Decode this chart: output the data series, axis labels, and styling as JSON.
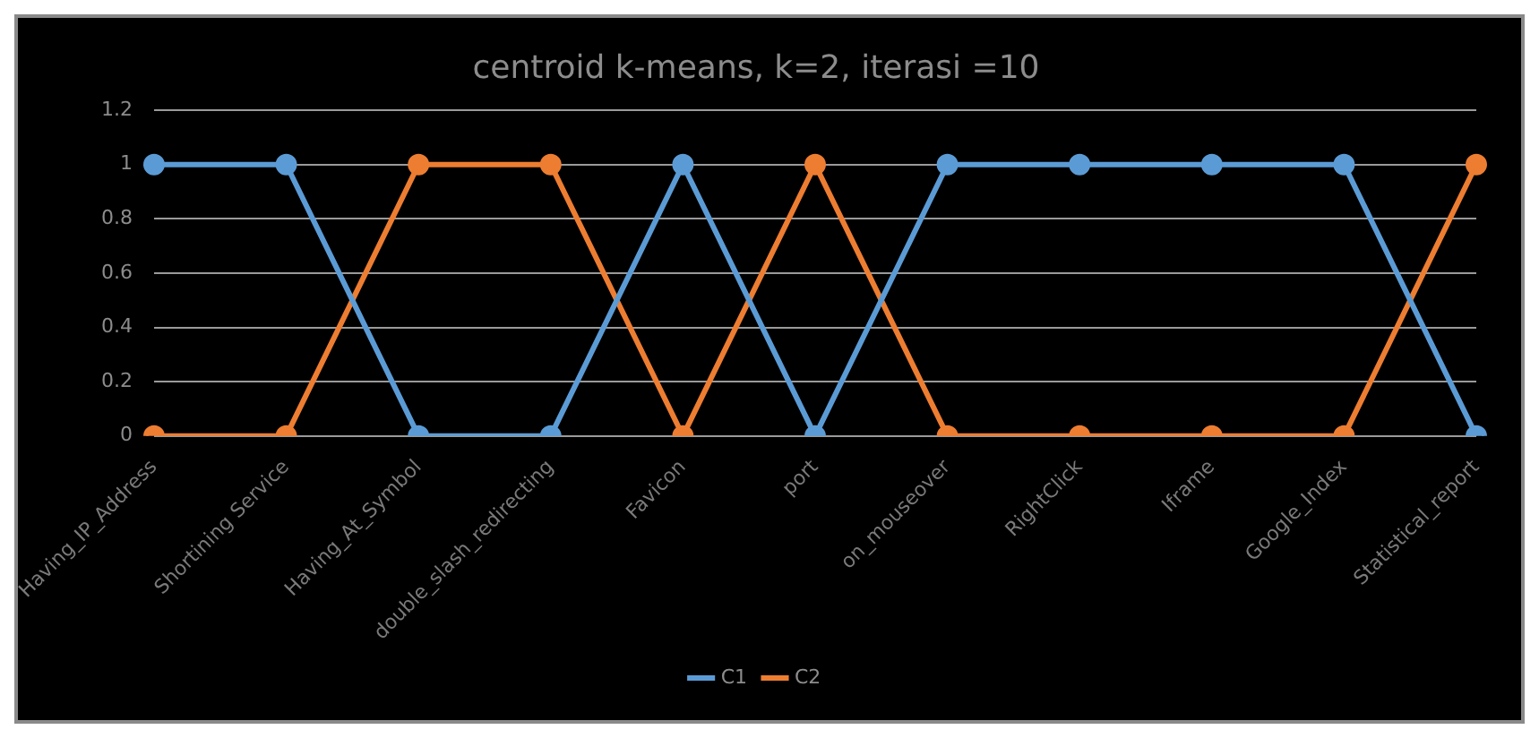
{
  "chart_data": {
    "type": "line",
    "title": "centroid k-means, k=2, iterasi =10",
    "categories": [
      "Having_IP_Address",
      "Shortining Service",
      "Having_At_Symbol",
      "double_slash_redirecting",
      "Favicon",
      "port",
      "on_mouseover",
      "RightClick",
      "Iframe",
      "Google_Index",
      "Statistical_report"
    ],
    "series": [
      {
        "name": "C1",
        "color": "#5b9bd5",
        "values": [
          1,
          1,
          0,
          0,
          1,
          0,
          1,
          1,
          1,
          1,
          0
        ]
      },
      {
        "name": "C2",
        "color": "#ed7d31",
        "values": [
          0,
          0,
          1,
          1,
          0,
          1,
          0,
          0,
          0,
          0,
          1
        ]
      }
    ],
    "ylim": [
      0,
      1.2
    ],
    "yticks": [
      0,
      0.2,
      0.4,
      0.6,
      0.8,
      1,
      1.2
    ],
    "grid": "y",
    "legend": "bottom",
    "marker": "circle"
  }
}
